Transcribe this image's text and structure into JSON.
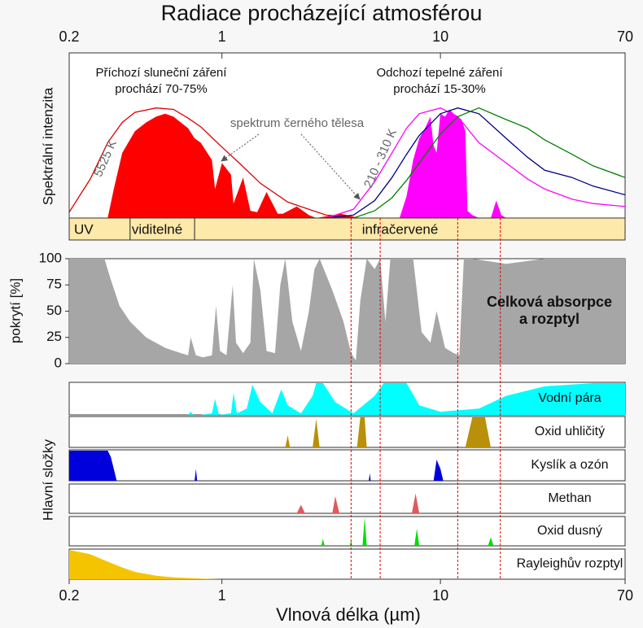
{
  "chart_data": [
    {
      "type": "area",
      "title": "Radiace procházející atmosférou",
      "ylabel": "Spektrální intenzita",
      "xscale": "log",
      "xlim": [
        0.2,
        70
      ],
      "xticks": [
        0.2,
        1,
        10,
        70
      ],
      "ylim": [
        0,
        100
      ],
      "series": [
        {
          "style": "fill",
          "color": "#ff0000",
          "x": [
            0.3,
            0.32,
            0.35,
            0.4,
            0.45,
            0.5,
            0.55,
            0.6,
            0.7,
            0.75,
            0.8,
            0.9,
            0.93,
            1.0,
            1.1,
            1.13,
            1.25,
            1.35,
            1.45,
            1.6,
            1.8,
            1.9,
            2.2,
            2.5,
            2.7,
            3.5,
            4,
            4.2
          ],
          "values": [
            0,
            20,
            45,
            60,
            66,
            70,
            72,
            70,
            62,
            55,
            52,
            40,
            20,
            38,
            30,
            10,
            28,
            5,
            4,
            18,
            3,
            3,
            8,
            2,
            0,
            3,
            1,
            0
          ]
        },
        {
          "style": "line",
          "color": "#e00000",
          "x": [
            0.2,
            0.25,
            0.3,
            0.35,
            0.4,
            0.5,
            0.6,
            0.7,
            0.8,
            1,
            1.2,
            1.5,
            2,
            2.5,
            3,
            4
          ],
          "values": [
            4,
            27,
            52,
            66,
            73,
            76,
            75,
            69,
            63,
            49,
            38,
            24,
            11,
            6,
            2,
            0.5
          ]
        },
        {
          "style": "fill",
          "color": "#ff00ff",
          "x": [
            6.5,
            7,
            7.5,
            8,
            8.5,
            9,
            9.3,
            9.6,
            10,
            10.5,
            11,
            11.5,
            12,
            12.5,
            13,
            13.3,
            14,
            15,
            17,
            18,
            19,
            20
          ],
          "values": [
            0,
            15,
            40,
            55,
            62,
            70,
            50,
            45,
            72,
            70,
            75,
            72,
            70,
            68,
            60,
            5,
            2,
            0,
            0,
            12,
            2,
            0
          ]
        },
        {
          "style": "line",
          "color": "#ff00ff",
          "x": [
            3,
            4,
            5,
            6,
            7,
            8,
            10,
            12,
            15,
            20,
            25,
            30,
            40,
            50,
            70
          ],
          "values": [
            0,
            6,
            25,
            45,
            62,
            72,
            76,
            70,
            52,
            38,
            27,
            20,
            13,
            10,
            8
          ]
        },
        {
          "style": "line",
          "color": "#000080",
          "x": [
            3,
            4,
            5,
            6,
            7,
            8,
            10,
            12,
            15,
            20,
            25,
            30,
            40,
            50,
            70
          ],
          "values": [
            0,
            2,
            12,
            28,
            44,
            57,
            72,
            76,
            72,
            55,
            42,
            33,
            28,
            22,
            16
          ]
        },
        {
          "style": "line",
          "color": "#008000",
          "x": [
            3,
            4,
            5,
            6,
            7,
            8,
            10,
            12,
            15,
            20,
            25,
            30,
            40,
            50,
            70
          ],
          "values": [
            0,
            0,
            5,
            14,
            26,
            38,
            58,
            70,
            76,
            68,
            62,
            54,
            44,
            36,
            28
          ]
        }
      ],
      "bands": [
        {
          "label": "UV",
          "from": 0.2,
          "to": 0.38
        },
        {
          "label": "viditelné",
          "from": 0.38,
          "to": 0.75
        },
        {
          "label": "infračervené",
          "from": 0.75,
          "to": 70
        }
      ],
      "band_color": "#fde9a9",
      "annotations": {
        "incoming": [
          "Příchozí sluneční záření",
          "prochází 70-75%"
        ],
        "outgoing": [
          "Odchozí tepelné záření",
          "prochází 15-30%"
        ],
        "blackbody": "spektrum černého tělesa",
        "sun_temp": "5525 K",
        "earth_temp": "210 - 310 K"
      }
    },
    {
      "type": "area",
      "ylabel": "pokrytí [%]",
      "xscale": "log",
      "xlim": [
        0.2,
        70
      ],
      "ylim": [
        0,
        100
      ],
      "yticks": [
        0,
        25,
        50,
        75,
        100
      ],
      "color": "#a6a6a6",
      "x": [
        0.2,
        0.29,
        0.31,
        0.34,
        0.38,
        0.45,
        0.55,
        0.65,
        0.7,
        0.72,
        0.76,
        0.82,
        0.9,
        0.94,
        0.98,
        1.05,
        1.12,
        1.16,
        1.25,
        1.35,
        1.4,
        1.5,
        1.6,
        1.75,
        1.85,
        1.95,
        2.1,
        2.3,
        2.5,
        2.65,
        2.8,
        3.2,
        3.6,
        3.9,
        4.1,
        4.3,
        4.6,
        5.0,
        5.3,
        5.6,
        5.9,
        6.5,
        7.5,
        8.2,
        9.0,
        9.6,
        10.5,
        11.5,
        12.2,
        12.8,
        14,
        20,
        30,
        40,
        70
      ],
      "values": [
        100,
        100,
        80,
        55,
        40,
        25,
        15,
        10,
        8,
        25,
        8,
        6,
        8,
        55,
        12,
        8,
        75,
        20,
        10,
        20,
        100,
        70,
        12,
        10,
        75,
        100,
        40,
        12,
        50,
        90,
        100,
        70,
        40,
        10,
        3,
        60,
        100,
        90,
        100,
        40,
        100,
        100,
        100,
        30,
        20,
        50,
        15,
        10,
        8,
        100,
        100,
        95,
        100,
        100,
        100
      ],
      "annotation": [
        "Celková absorpce",
        "a rozptyl"
      ],
      "vlines": [
        3.9,
        5.3,
        12,
        18.8
      ],
      "vline_color": "#e00000"
    },
    {
      "type": "area",
      "ylabel": "Hlavní složky",
      "xlabel": "Vlnová délka (µm)",
      "xscale": "log",
      "xlim": [
        0.2,
        70
      ],
      "xticks": [
        0.2,
        1,
        10,
        70
      ],
      "ylim": [
        0,
        100
      ],
      "series": [
        {
          "name": "Vodní pára",
          "color": "#00ffff",
          "x": [
            0.6,
            0.7,
            0.72,
            0.74,
            0.8,
            0.9,
            0.93,
            0.97,
            1.1,
            1.13,
            1.17,
            1.3,
            1.38,
            1.5,
            1.7,
            1.87,
            2.0,
            2.3,
            2.6,
            2.7,
            2.9,
            3.3,
            4.0,
            5.0,
            5.5,
            6.3,
            7.0,
            8,
            10,
            15,
            20,
            30,
            50,
            70
          ],
          "values": [
            0,
            0,
            10,
            0,
            0,
            5,
            50,
            0,
            5,
            70,
            5,
            20,
            95,
            40,
            5,
            80,
            30,
            5,
            60,
            100,
            100,
            40,
            5,
            60,
            100,
            100,
            100,
            30,
            10,
            20,
            60,
            90,
            100,
            100
          ]
        },
        {
          "name": "Oxid uhličitý",
          "color": "#b8900a",
          "x": [
            0.2,
            1.95,
            2.0,
            2.05,
            2.6,
            2.7,
            2.8,
            4.15,
            4.3,
            4.5,
            4.6,
            13,
            14,
            15,
            16,
            17,
            70
          ],
          "values": [
            0,
            0,
            40,
            0,
            0,
            95,
            0,
            0,
            100,
            100,
            0,
            0,
            100,
            100,
            100,
            0,
            0
          ]
        },
        {
          "name": "Kyslík a ozón",
          "color": "#0000dd",
          "x": [
            0.2,
            0.3,
            0.31,
            0.33,
            0.75,
            0.76,
            0.77,
            4.7,
            4.75,
            4.8,
            9.3,
            9.6,
            10,
            10.3,
            70
          ],
          "values": [
            100,
            100,
            80,
            0,
            0,
            40,
            0,
            0,
            25,
            0,
            0,
            70,
            40,
            0,
            0
          ]
        },
        {
          "name": "Methan",
          "color": "#e05a5a",
          "x": [
            0.2,
            2.2,
            2.3,
            2.4,
            3.2,
            3.3,
            3.45,
            7.4,
            7.7,
            8.0,
            70
          ],
          "values": [
            0,
            0,
            30,
            0,
            0,
            60,
            0,
            0,
            70,
            0,
            0
          ]
        },
        {
          "name": "Oxid dusný",
          "color": "#00dd00",
          "x": [
            0.2,
            2.85,
            2.9,
            2.95,
            3.85,
            3.9,
            3.95,
            4.4,
            4.5,
            4.6,
            7.6,
            7.8,
            8.0,
            16.5,
            17,
            17.5,
            70
          ],
          "values": [
            0,
            0,
            25,
            0,
            0,
            20,
            0,
            0,
            100,
            0,
            0,
            60,
            0,
            0,
            30,
            0,
            0
          ]
        },
        {
          "name": "Rayleighův rozptyl",
          "color": "#f5c400",
          "x": [
            0.2,
            0.25,
            0.3,
            0.35,
            0.4,
            0.5,
            0.6,
            0.8,
            1
          ],
          "values": [
            100,
            85,
            60,
            40,
            25,
            12,
            6,
            2,
            0
          ]
        }
      ]
    }
  ]
}
